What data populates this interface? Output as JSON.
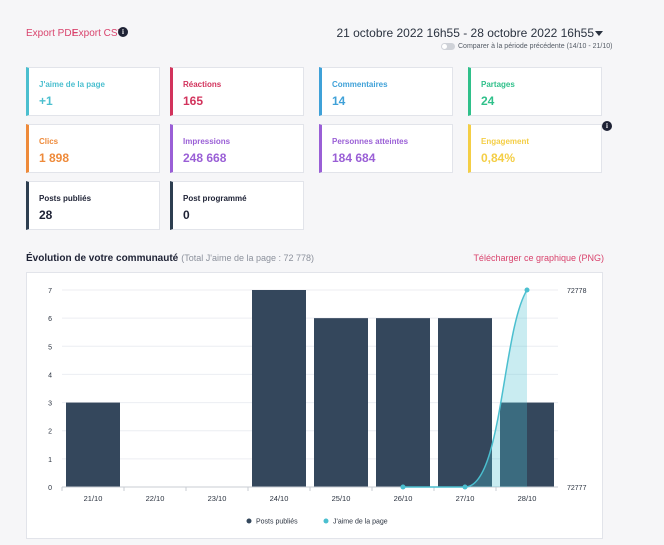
{
  "toolbar": {
    "export_pdf": "Export PDF",
    "export_csv": "Export CSV",
    "info_glyph": "i"
  },
  "header": {
    "date_range": "21 octobre 2022 16h55 - 28 octobre 2022 16h55",
    "compare_label": "Comparer à la période précédente (14/10 - 21/10)"
  },
  "cards": [
    {
      "label": "J'aime de la page",
      "value": "+1",
      "color": "#4bbfcf"
    },
    {
      "label": "Réactions",
      "value": "165",
      "color": "#d2335c"
    },
    {
      "label": "Commentaires",
      "value": "14",
      "color": "#3fa1d8"
    },
    {
      "label": "Partages",
      "value": "24",
      "color": "#2fc08a"
    },
    {
      "label": "Clics",
      "value": "1 898",
      "color": "#ee8a3a"
    },
    {
      "label": "Impressions",
      "value": "248 668",
      "color": "#9a5fd6"
    },
    {
      "label": "Personnes atteintes",
      "value": "184 684",
      "color": "#9a5fd6"
    },
    {
      "label": "Engagement",
      "value": "0,84%",
      "color": "#f4ce45"
    },
    {
      "label": "Posts publiés",
      "value": "28",
      "color": "#2d3e50"
    },
    {
      "label": "Post programmé",
      "value": "0",
      "color": "#2d3e50"
    }
  ],
  "community": {
    "title": "Évolution de votre communauté",
    "subtitle": "(Total J'aime de la page : 72 778)",
    "download": "Télécharger ce graphique (PNG)"
  },
  "chart_data": {
    "type": "bar",
    "categories": [
      "21/10",
      "22/10",
      "23/10",
      "24/10",
      "25/10",
      "26/10",
      "27/10",
      "28/10"
    ],
    "series": [
      {
        "name": "Posts publiés",
        "values": [
          3,
          0,
          0,
          7,
          6,
          6,
          6,
          3
        ],
        "color": "#34475c",
        "axis": "left"
      },
      {
        "name": "J'aime de la page",
        "type": "area",
        "values": [
          null,
          null,
          null,
          null,
          null,
          72777,
          72777,
          72778
        ],
        "color": "#4bbfcf",
        "axis": "right"
      }
    ],
    "ylim": [
      0,
      7
    ],
    "y_ticks": [
      "0",
      "1",
      "2",
      "3",
      "4",
      "5",
      "6",
      "7"
    ],
    "y2lim": [
      72777,
      72778
    ],
    "y2_ticks": [
      "72777",
      "72778"
    ],
    "legend_position": "bottom"
  }
}
